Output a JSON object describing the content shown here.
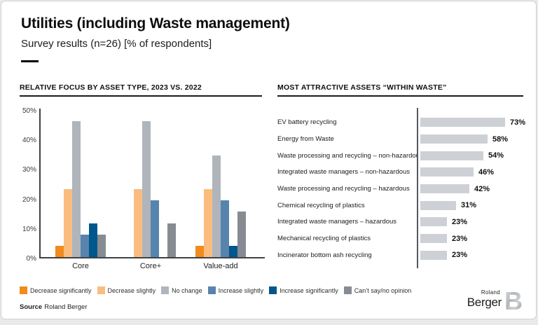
{
  "header": {
    "title": "Utilities (including Waste management)",
    "subtitle": "Survey results (n=26) [% of respondents]"
  },
  "footer": {
    "source_label": "Source",
    "source_value": "Roland Berger"
  },
  "logo": {
    "line1": "Roland",
    "line2": "Berger",
    "letter": "B"
  },
  "colors": {
    "decrease_significantly": "#F28A1D",
    "decrease_slightly": "#FABD7F",
    "no_change": "#AFB5BB",
    "increase_slightly": "#5784AD",
    "increase_significantly": "#00578C",
    "cant_say": "#868C92",
    "right_bar": "#CDD1D5",
    "axis": "#3E4245"
  },
  "chart_data": [
    {
      "type": "bar",
      "title": "RELATIVE FOCUS BY ASSET TYPE, 2023 VS. 2022",
      "categories": [
        "Core",
        "Core+",
        "Value-add"
      ],
      "series": [
        {
          "name": "Decrease significantly",
          "color": "#F28A1D",
          "values": [
            3.8,
            0,
            3.8
          ]
        },
        {
          "name": "Decrease slightly",
          "color": "#FABD7F",
          "values": [
            23.1,
            23.1,
            23.1
          ]
        },
        {
          "name": "No change",
          "color": "#AFB5BB",
          "values": [
            46.2,
            46.2,
            34.6
          ]
        },
        {
          "name": "Increase slightly",
          "color": "#5784AD",
          "values": [
            7.7,
            19.2,
            19.2
          ]
        },
        {
          "name": "Increase significantly",
          "color": "#00578C",
          "values": [
            11.5,
            0,
            3.8
          ]
        },
        {
          "name": "Can’t say/no opinion",
          "color": "#868C92",
          "values": [
            7.7,
            11.5,
            15.4
          ]
        }
      ],
      "xlabel": "",
      "ylabel": "",
      "ylim": [
        0,
        50
      ],
      "yticks": [
        "50%",
        "40%",
        "30%",
        "20%",
        "10%",
        "0%"
      ],
      "grid": false,
      "legend_position": "bottom"
    },
    {
      "type": "bar",
      "orientation": "horizontal",
      "title": "MOST ATTRACTIVE ASSETS “WITHIN WASTE”",
      "categories": [
        "EV battery recycling",
        "Energy from Waste",
        "Waste processing and recycling – non-hazardous",
        "Integrated waste managers – non-hazardous",
        "Waste processing and recycling – hazardous",
        "Chemical recycling of plastics",
        "Integrated waste managers – hazardous",
        "Mechanical recycling of plastics",
        "Incinerator bottom ash recycling"
      ],
      "values": [
        73,
        58,
        54,
        46,
        42,
        31,
        23,
        23,
        23
      ],
      "value_labels": [
        "73%",
        "58%",
        "54%",
        "46%",
        "42%",
        "31%",
        "23%",
        "23%",
        "23%"
      ],
      "bar_color": "#CDD1D5",
      "xlim": [
        0,
        85
      ],
      "grid": false
    }
  ]
}
